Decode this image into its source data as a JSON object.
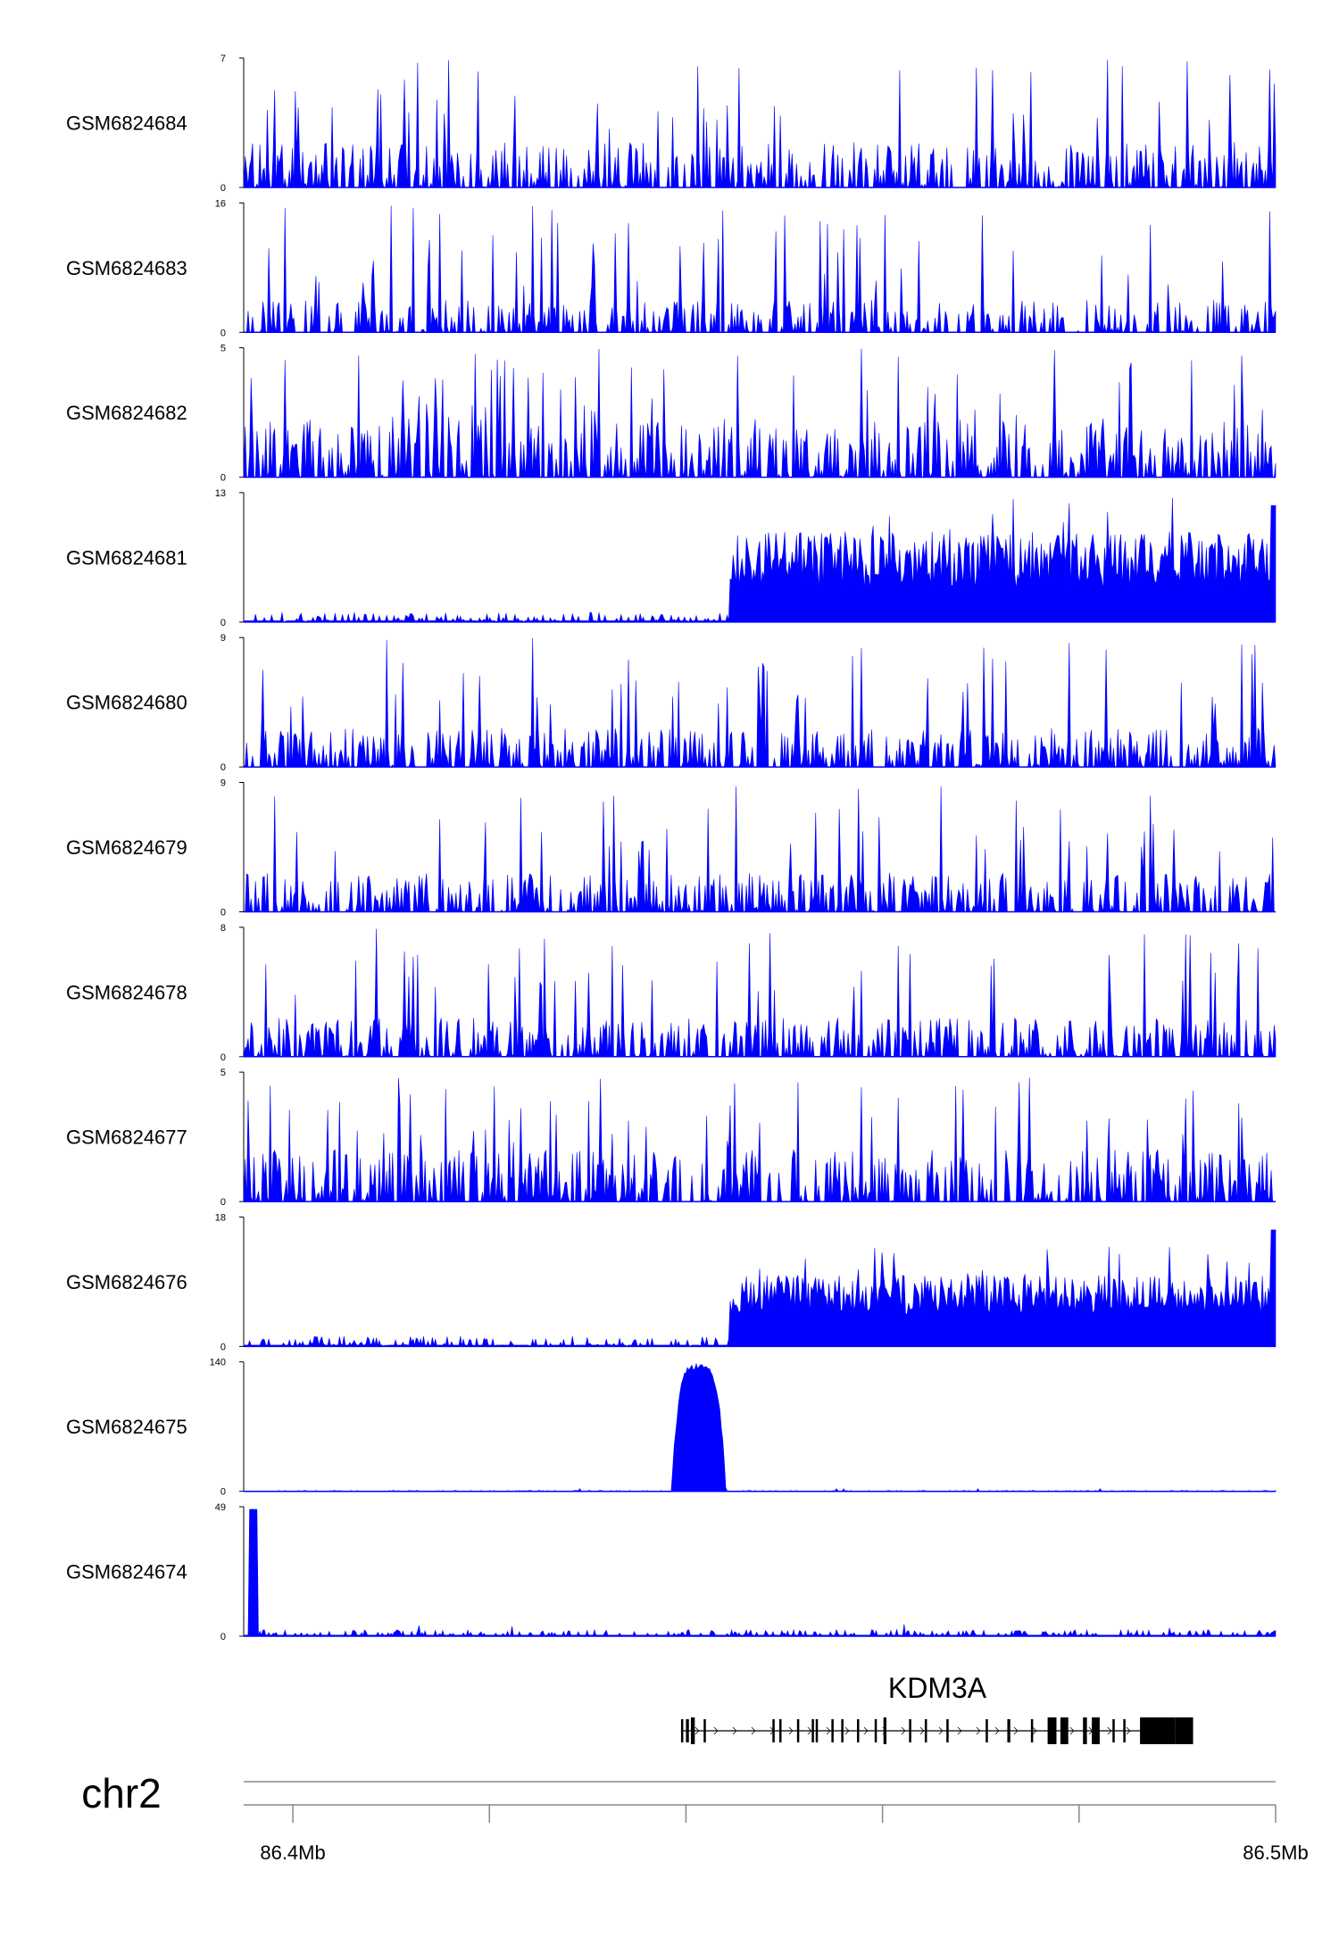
{
  "chart_data": {
    "type": "area",
    "chromosome": "chr2",
    "xlim": [
      86.395,
      86.5
    ],
    "x_ticks": [
      86.4,
      86.42,
      86.44,
      86.46,
      86.48,
      86.5
    ],
    "x_tick_labels": [
      "86.4Mb",
      "",
      "",
      "",
      "",
      "86.5Mb"
    ],
    "color": "#0000ff",
    "tracks": [
      {
        "name": "GSM6824684",
        "ymax": 7,
        "ymin_label": "0",
        "ymax_label": "7",
        "profile": "noisy",
        "level": 0.35
      },
      {
        "name": "GSM6824683",
        "ymax": 16,
        "ymin_label": "0",
        "ymax_label": "16",
        "profile": "sparse",
        "level": 0.3
      },
      {
        "name": "GSM6824682",
        "ymax": 5,
        "ymin_label": "0",
        "ymax_label": "5",
        "profile": "noisy",
        "level": 0.45
      },
      {
        "name": "GSM6824681",
        "ymax": 13,
        "ymin_label": "0",
        "ymax_label": "13",
        "profile": "rising",
        "level": 0.45
      },
      {
        "name": "GSM6824680",
        "ymax": 9,
        "ymin_label": "0",
        "ymax_label": "9",
        "profile": "noisy",
        "level": 0.3
      },
      {
        "name": "GSM6824679",
        "ymax": 9,
        "ymin_label": "0",
        "ymax_label": "9",
        "profile": "noisy",
        "level": 0.3
      },
      {
        "name": "GSM6824678",
        "ymax": 8,
        "ymin_label": "0",
        "ymax_label": "8",
        "profile": "noisy",
        "level": 0.3
      },
      {
        "name": "GSM6824677",
        "ymax": 5,
        "ymin_label": "0",
        "ymax_label": "5",
        "profile": "noisy",
        "level": 0.4
      },
      {
        "name": "GSM6824676",
        "ymax": 18,
        "ymin_label": "0",
        "ymax_label": "18",
        "profile": "rising",
        "level": 0.3
      },
      {
        "name": "GSM6824675",
        "ymax": 140,
        "ymin_label": "0",
        "ymax_label": "140",
        "profile": "peak",
        "peak_x": 86.4413,
        "peak_value": 138
      },
      {
        "name": "GSM6824674",
        "ymax": 49,
        "ymin_label": "0",
        "ymax_label": "49",
        "profile": "edge",
        "peak_x": 86.3955,
        "peak_value": 48
      }
    ],
    "gene": {
      "name": "KDM3A",
      "strand": "+",
      "start": 86.4395,
      "end": 86.4916,
      "exons": [
        [
          86.4395,
          86.4397
        ],
        [
          86.44,
          86.4403
        ],
        [
          86.4405,
          86.4409
        ],
        [
          86.4418,
          86.442
        ],
        [
          86.4488,
          86.4489
        ],
        [
          86.4495,
          86.4497
        ],
        [
          86.4513,
          86.4515
        ],
        [
          86.4528,
          86.4529
        ],
        [
          86.4532,
          86.4534
        ],
        [
          86.4548,
          86.455
        ],
        [
          86.4558,
          86.4559
        ],
        [
          86.4574,
          86.4575
        ],
        [
          86.4592,
          86.4594
        ],
        [
          86.4601,
          86.4604
        ],
        [
          86.4627,
          86.4628
        ],
        [
          86.4643,
          86.4645
        ],
        [
          86.4665,
          86.4667
        ],
        [
          86.4705,
          86.4707
        ],
        [
          86.4727,
          86.473
        ],
        [
          86.4751,
          86.4753
        ],
        [
          86.4768,
          86.4777
        ],
        [
          86.4781,
          86.4789
        ],
        [
          86.4804,
          86.4808
        ],
        [
          86.4813,
          86.4821
        ],
        [
          86.4834,
          86.4836
        ],
        [
          86.4845,
          86.4846
        ],
        [
          86.4862,
          86.4898
        ],
        [
          86.4898,
          86.4916
        ]
      ]
    }
  }
}
